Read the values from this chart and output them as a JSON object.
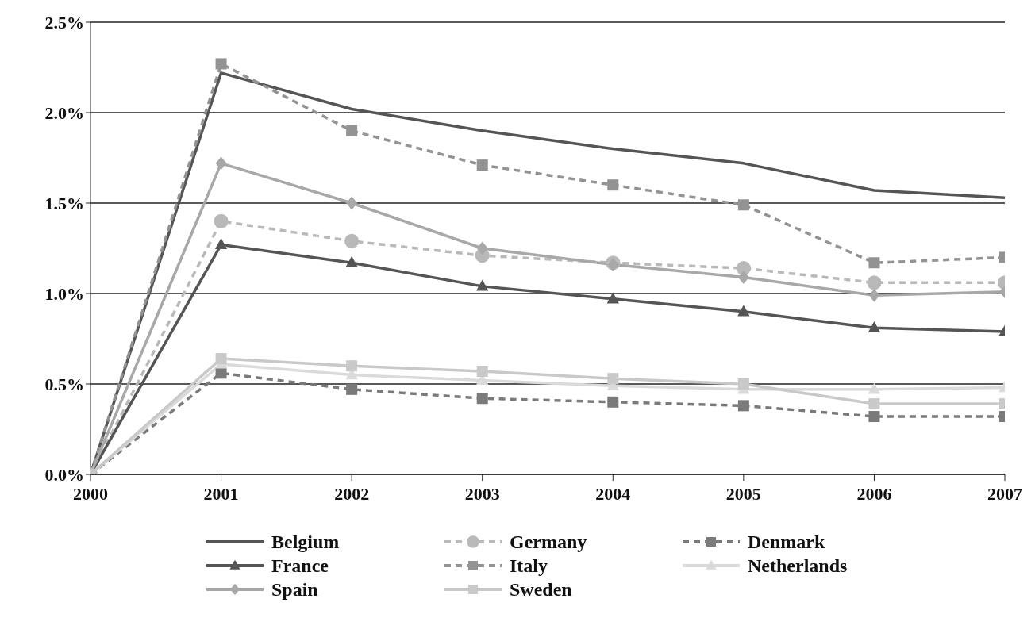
{
  "chart_data": {
    "type": "line",
    "categories": [
      "2000",
      "2001",
      "2002",
      "2003",
      "2004",
      "2005",
      "2006",
      "2007"
    ],
    "ylim": [
      0,
      2.5
    ],
    "yticks": [
      {
        "value": 0,
        "label": "0.0%"
      },
      {
        "value": 0.5,
        "label": "0.5%"
      },
      {
        "value": 1,
        "label": "1.0%"
      },
      {
        "value": 1.5,
        "label": "1.5%"
      },
      {
        "value": 2,
        "label": "2.0%"
      },
      {
        "value": 2.5,
        "label": "2.5%"
      }
    ],
    "grid": "y",
    "legend": "bottom",
    "series": [
      {
        "name": "Belgium",
        "color": "#555555",
        "marker": "none",
        "line_style": "solid",
        "values": [
          0,
          2.22,
          2.02,
          1.9,
          1.8,
          1.72,
          1.57,
          1.53
        ]
      },
      {
        "name": "Germany",
        "color": "#b9b9b9",
        "marker": "circle",
        "line_style": "dashed",
        "values": [
          0,
          1.4,
          1.29,
          1.21,
          1.17,
          1.14,
          1.06,
          1.06
        ]
      },
      {
        "name": "Denmark",
        "color": "#7a7a7a",
        "marker": "square",
        "line_style": "dashed",
        "values": [
          0,
          0.56,
          0.47,
          0.42,
          0.4,
          0.38,
          0.32,
          0.32
        ]
      },
      {
        "name": "France",
        "color": "#555555",
        "marker": "triangle",
        "line_style": "solid",
        "values": [
          0,
          1.27,
          1.17,
          1.04,
          0.97,
          0.9,
          0.81,
          0.79
        ]
      },
      {
        "name": "Italy",
        "color": "#939393",
        "marker": "square",
        "line_style": "dashed",
        "values": [
          0,
          2.27,
          1.9,
          1.71,
          1.6,
          1.49,
          1.17,
          1.2
        ]
      },
      {
        "name": "Netherlands",
        "color": "#dadada",
        "marker": "triangle",
        "line_style": "solid",
        "values": [
          0,
          0.61,
          0.55,
          0.52,
          0.49,
          0.47,
          0.47,
          0.48
        ]
      },
      {
        "name": "Spain",
        "color": "#a8a8a8",
        "marker": "diamond",
        "line_style": "solid",
        "values": [
          0,
          1.72,
          1.5,
          1.25,
          1.16,
          1.09,
          0.99,
          1.01
        ]
      },
      {
        "name": "Sweden",
        "color": "#c9c9c9",
        "marker": "square",
        "line_style": "solid",
        "values": [
          0,
          0.64,
          0.6,
          0.57,
          0.53,
          0.5,
          0.39,
          0.39
        ]
      }
    ]
  }
}
